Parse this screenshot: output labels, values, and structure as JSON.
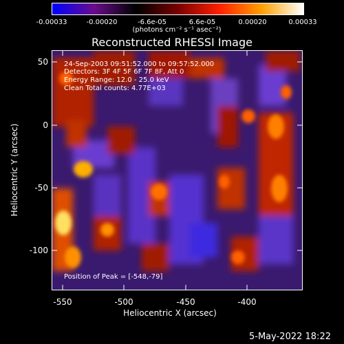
{
  "colorbar": {
    "ticks": [
      "-0.00033",
      "-0.00020",
      "-6.6e-05",
      "6.6e-05",
      "0.00020",
      "0.00033"
    ],
    "units_label": "(photons cm⁻² s⁻¹ asec⁻²)",
    "colors": [
      "#0000ff",
      "#6a0d8c",
      "#000000",
      "#7a0000",
      "#ff2000",
      "#ffa000",
      "#ffffff"
    ]
  },
  "title": "Reconstructed RHESSI Image",
  "info": {
    "line1": "24-Sep-2003 09:51:52.000 to 09:57:52.000",
    "line2": "Detectors: 3F 4F 5F 6F 7F 8F, Att 0",
    "line3": "Energy Range: 12.0 - 25.0 keV",
    "line4": "Clean     Total counts: 4.77E+03",
    "peak": "Position of Peak = [-548,-79]"
  },
  "x_axis": {
    "label": "Heliocentric X (arcsec)",
    "ticks": [
      "-550",
      "-500",
      "-450",
      "-400"
    ]
  },
  "y_axis": {
    "label": "Heliocentric Y (arcsec)",
    "ticks": [
      "50",
      "0",
      "-50",
      "-100"
    ]
  },
  "timestamp": "5-May-2022 18:22"
}
